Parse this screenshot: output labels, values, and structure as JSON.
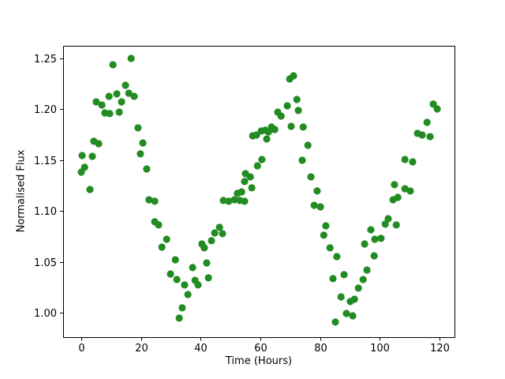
{
  "chart_data": {
    "type": "scatter",
    "title": "",
    "xlabel": "Time (Hours)",
    "ylabel": "Normalised Flux",
    "legend": null,
    "grid": false,
    "marker_color": "#228B22",
    "axis_color": "#000000",
    "background_color": "#ffffff",
    "xlim": [
      -6.08,
      125.0
    ],
    "ylim": [
      0.9759,
      1.2624
    ],
    "x_ticks": [
      {
        "v": 0,
        "label": "0"
      },
      {
        "v": 20,
        "label": "20"
      },
      {
        "v": 40,
        "label": "40"
      },
      {
        "v": 60,
        "label": "60"
      },
      {
        "v": 80,
        "label": "80"
      },
      {
        "v": 100,
        "label": "100"
      },
      {
        "v": 120,
        "label": "120"
      }
    ],
    "y_ticks": [
      {
        "v": 1.0,
        "label": "1.00"
      },
      {
        "v": 1.05,
        "label": "1.05"
      },
      {
        "v": 1.1,
        "label": "1.10"
      },
      {
        "v": 1.15,
        "label": "1.15"
      },
      {
        "v": 1.2,
        "label": "1.20"
      },
      {
        "v": 1.25,
        "label": "1.25"
      }
    ],
    "points": [
      [
        0.0,
        1.1382
      ],
      [
        0.3,
        1.1545
      ],
      [
        1.1,
        1.1429
      ],
      [
        2.9,
        1.1211
      ],
      [
        3.7,
        1.1537
      ],
      [
        4.2,
        1.1685
      ],
      [
        5.0,
        1.2073
      ],
      [
        5.8,
        1.1661
      ],
      [
        6.9,
        1.2042
      ],
      [
        7.9,
        1.1964
      ],
      [
        9.3,
        1.2127
      ],
      [
        9.5,
        1.1957
      ],
      [
        10.6,
        1.2438
      ],
      [
        11.9,
        1.2151
      ],
      [
        12.7,
        1.1972
      ],
      [
        13.5,
        1.2073
      ],
      [
        14.8,
        1.2236
      ],
      [
        15.9,
        1.2158
      ],
      [
        16.7,
        1.25
      ],
      [
        17.7,
        1.2127
      ],
      [
        19.0,
        1.1817
      ],
      [
        19.8,
        1.1561
      ],
      [
        20.6,
        1.1669
      ],
      [
        21.9,
        1.1413
      ],
      [
        22.7,
        1.111
      ],
      [
        24.6,
        1.1095
      ],
      [
        24.6,
        1.0893
      ],
      [
        25.9,
        1.0862
      ],
      [
        27.0,
        1.0644
      ],
      [
        28.6,
        1.0722
      ],
      [
        29.9,
        1.038
      ],
      [
        31.5,
        1.052
      ],
      [
        32.0,
        1.0326
      ],
      [
        32.8,
        0.9946
      ],
      [
        33.8,
        1.0047
      ],
      [
        34.6,
        1.0272
      ],
      [
        35.7,
        1.0178
      ],
      [
        37.3,
        1.0443
      ],
      [
        38.1,
        1.0318
      ],
      [
        39.1,
        1.0272
      ],
      [
        40.4,
        1.0675
      ],
      [
        41.2,
        1.0637
      ],
      [
        42.0,
        1.0489
      ],
      [
        42.6,
        1.0342
      ],
      [
        43.6,
        1.0707
      ],
      [
        44.7,
        1.0784
      ],
      [
        46.3,
        1.0839
      ],
      [
        47.3,
        1.0777
      ],
      [
        47.6,
        1.1103
      ],
      [
        49.4,
        1.1095
      ],
      [
        51.3,
        1.111
      ],
      [
        53.1,
        1.1103
      ],
      [
        54.7,
        1.1095
      ],
      [
        52.3,
        1.1173
      ],
      [
        53.7,
        1.1188
      ],
      [
        54.7,
        1.1289
      ],
      [
        55.0,
        1.1367
      ],
      [
        56.6,
        1.1335
      ],
      [
        57.1,
        1.1227
      ],
      [
        57.4,
        1.1739
      ],
      [
        58.7,
        1.1747
      ],
      [
        59.0,
        1.1444
      ],
      [
        60.3,
        1.1786
      ],
      [
        60.5,
        1.1506
      ],
      [
        61.6,
        1.1794
      ],
      [
        62.1,
        1.1708
      ],
      [
        62.7,
        1.1778
      ],
      [
        63.7,
        1.1825
      ],
      [
        64.8,
        1.1801
      ],
      [
        65.8,
        1.1972
      ],
      [
        66.9,
        1.1933
      ],
      [
        69.0,
        1.2034
      ],
      [
        69.8,
        1.2298
      ],
      [
        70.3,
        1.1832
      ],
      [
        71.1,
        1.2329
      ],
      [
        72.2,
        1.2096
      ],
      [
        72.7,
        1.1988
      ],
      [
        74.0,
        1.1498
      ],
      [
        74.3,
        1.1825
      ],
      [
        75.9,
        1.1646
      ],
      [
        76.9,
        1.1335
      ],
      [
        78.0,
        1.1056
      ],
      [
        79.0,
        1.1196
      ],
      [
        80.1,
        1.104
      ],
      [
        81.2,
        1.0761
      ],
      [
        81.9,
        1.0854
      ],
      [
        83.3,
        1.0637
      ],
      [
        84.3,
        1.0334
      ],
      [
        85.1,
        0.9907
      ],
      [
        85.6,
        1.0551
      ],
      [
        87.0,
        1.0155
      ],
      [
        88.0,
        1.0373
      ],
      [
        88.8,
        0.9992
      ],
      [
        90.1,
        1.0109
      ],
      [
        90.9,
        0.9969
      ],
      [
        91.5,
        1.0132
      ],
      [
        92.8,
        1.0241
      ],
      [
        94.4,
        1.0326
      ],
      [
        94.9,
        1.0675
      ],
      [
        95.7,
        1.0419
      ],
      [
        97.0,
        1.0815
      ],
      [
        98.1,
        1.0559
      ],
      [
        98.3,
        1.0722
      ],
      [
        100.4,
        1.073
      ],
      [
        101.8,
        1.087
      ],
      [
        102.8,
        1.0924
      ],
      [
        104.4,
        1.111
      ],
      [
        104.9,
        1.1258
      ],
      [
        105.5,
        1.0862
      ],
      [
        106.0,
        1.1133
      ],
      [
        108.4,
        1.1219
      ],
      [
        108.4,
        1.1506
      ],
      [
        110.2,
        1.1196
      ],
      [
        111.0,
        1.1483
      ],
      [
        112.6,
        1.1763
      ],
      [
        114.2,
        1.1747
      ],
      [
        115.8,
        1.1871
      ],
      [
        116.8,
        1.1731
      ],
      [
        117.9,
        1.205
      ],
      [
        119.2,
        1.2003
      ]
    ]
  }
}
